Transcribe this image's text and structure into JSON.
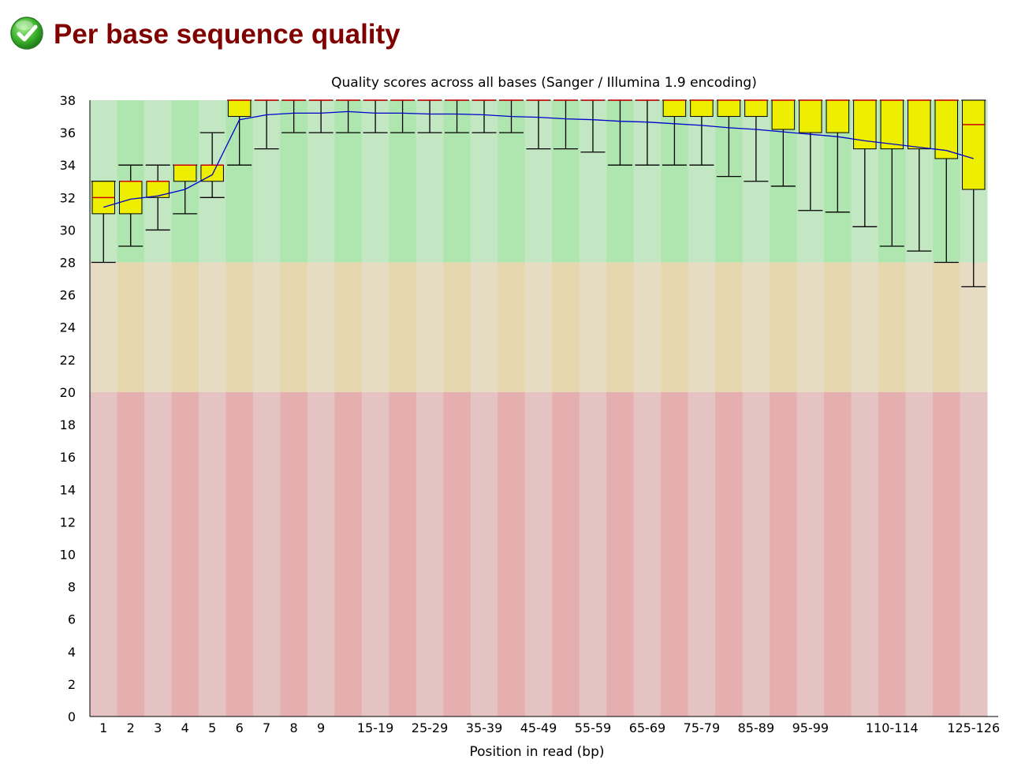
{
  "header": {
    "title": "Per base sequence quality",
    "status_icon": "check-circle-icon",
    "status_color": "#2ea82e",
    "title_color": "#800000"
  },
  "chart_data": {
    "type": "box",
    "title": "Quality scores across all bases (Sanger / Illumina 1.9 encoding)",
    "xlabel": "Position in read (bp)",
    "ylabel": "",
    "ylim": [
      0,
      38
    ],
    "yticks": [
      0,
      2,
      4,
      6,
      8,
      10,
      12,
      14,
      16,
      18,
      20,
      22,
      24,
      26,
      28,
      30,
      32,
      34,
      36,
      38
    ],
    "zones": [
      {
        "name": "good",
        "from": 28,
        "to": 38,
        "colors": [
          "#c3e6c3",
          "#afe6af"
        ]
      },
      {
        "name": "reasonable",
        "from": 20,
        "to": 28,
        "colors": [
          "#e6dcc3",
          "#e6d7af"
        ]
      },
      {
        "name": "poor",
        "from": 0,
        "to": 20,
        "colors": [
          "#e6c3c3",
          "#e6afaf"
        ]
      }
    ],
    "colors": {
      "box": "#eeee00",
      "median": "#cc0000",
      "mean": "#0000cc",
      "whisker": "#000000"
    },
    "categories": [
      "1",
      "2",
      "3",
      "4",
      "5",
      "6",
      "7",
      "8",
      "9",
      "10-14",
      "15-19",
      "20-24",
      "25-29",
      "30-34",
      "35-39",
      "40-44",
      "45-49",
      "50-54",
      "55-59",
      "60-64",
      "65-69",
      "70-74",
      "75-79",
      "80-84",
      "85-89",
      "90-94",
      "95-99",
      "100-104",
      "105-109",
      "110-114",
      "115-119",
      "120-124",
      "125-126"
    ],
    "tick_labels": [
      "1",
      "2",
      "3",
      "4",
      "5",
      "6",
      "7",
      "8",
      "9",
      "",
      "15-19",
      "",
      "25-29",
      "",
      "35-39",
      "",
      "45-49",
      "",
      "55-59",
      "",
      "65-69",
      "",
      "75-79",
      "",
      "85-89",
      "",
      "95-99",
      "",
      "",
      "110-114",
      "",
      "",
      "125-126"
    ],
    "series": [
      {
        "name": "median",
        "values": [
          32,
          33,
          33,
          34,
          34,
          38,
          38,
          38,
          38,
          38,
          38,
          38,
          38,
          38,
          38,
          38,
          38,
          38,
          38,
          38,
          38,
          38,
          38,
          38,
          38,
          38,
          38,
          38,
          38,
          38,
          38,
          38,
          36.5
        ]
      },
      {
        "name": "q1",
        "values": [
          31,
          31,
          32,
          33,
          33,
          37,
          38,
          38,
          38,
          38,
          38,
          38,
          38,
          38,
          38,
          38,
          38,
          38,
          38,
          38,
          38,
          37,
          37,
          37,
          37,
          36.2,
          36,
          36,
          35,
          35,
          35,
          34.4,
          32.5
        ]
      },
      {
        "name": "q3",
        "values": [
          33,
          33,
          33,
          34,
          34,
          38,
          38,
          38,
          38,
          38,
          38,
          38,
          38,
          38,
          38,
          38,
          38,
          38,
          38,
          38,
          38,
          38,
          38,
          38,
          38,
          38,
          38,
          38,
          38,
          38,
          38,
          38,
          38
        ]
      },
      {
        "name": "lower_whisker",
        "values": [
          28,
          29,
          30,
          31,
          32,
          34,
          35,
          36,
          36,
          36,
          36,
          36,
          36,
          36,
          36,
          36,
          35,
          35,
          34.8,
          34,
          34,
          34,
          34,
          33.3,
          33,
          32.7,
          31.2,
          31.1,
          30.2,
          29,
          28.7,
          28,
          26.5
        ]
      },
      {
        "name": "upper_whisker",
        "values": [
          33,
          34,
          34,
          34,
          36,
          38,
          38,
          38,
          38,
          38,
          38,
          38,
          38,
          38,
          38,
          38,
          38,
          38,
          38,
          38,
          38,
          38,
          38,
          38,
          38,
          38,
          38,
          38,
          38,
          38,
          38,
          38,
          38
        ]
      },
      {
        "name": "mean",
        "values": [
          31.4,
          31.9,
          32.1,
          32.5,
          33.4,
          36.8,
          37.1,
          37.2,
          37.2,
          37.3,
          37.2,
          37.2,
          37.15,
          37.15,
          37.1,
          37.0,
          36.95,
          36.85,
          36.8,
          36.7,
          36.65,
          36.55,
          36.45,
          36.3,
          36.2,
          36.05,
          35.9,
          35.75,
          35.5,
          35.3,
          35.1,
          34.9,
          34.4
        ]
      }
    ]
  }
}
